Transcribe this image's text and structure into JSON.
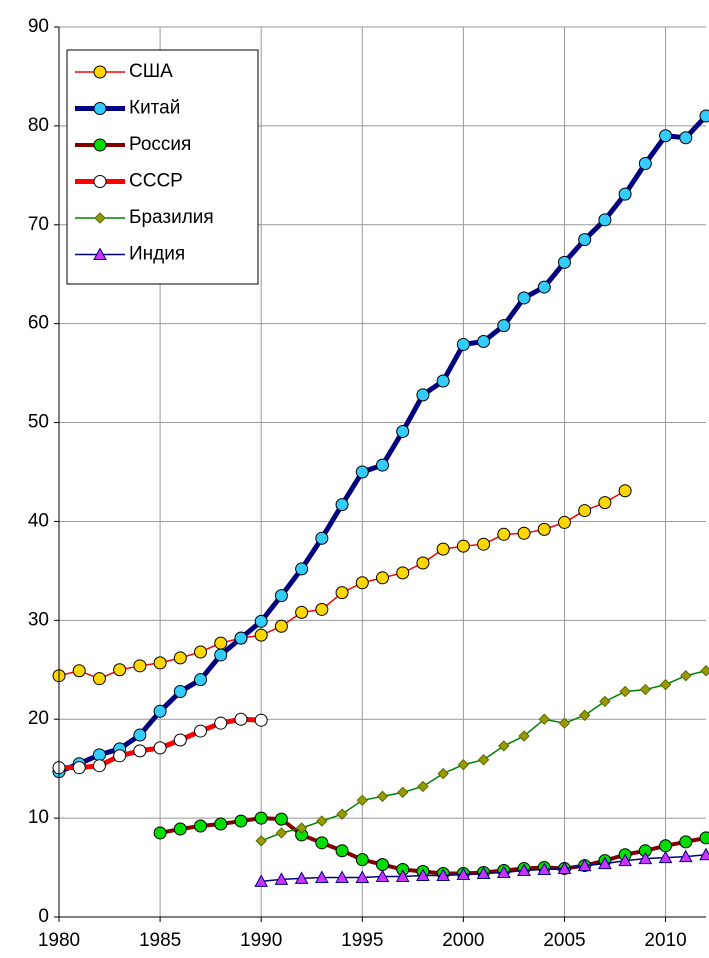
{
  "chart_data": {
    "type": "line",
    "x": [
      1980,
      1981,
      1982,
      1983,
      1984,
      1985,
      1986,
      1987,
      1988,
      1989,
      1990,
      1991,
      1992,
      1993,
      1994,
      1995,
      1996,
      1997,
      1998,
      1999,
      2000,
      2001,
      2002,
      2003,
      2004,
      2005,
      2006,
      2007,
      2008,
      2009,
      2010,
      2011,
      2012
    ],
    "series": [
      {
        "name": "США",
        "color": "#ff0000",
        "marker_color": "#ffd700",
        "marker": "circle",
        "width": 1.5,
        "values": [
          24.4,
          24.9,
          24.1,
          25.0,
          25.4,
          25.7,
          26.2,
          26.8,
          27.7,
          28.2,
          28.5,
          29.4,
          30.8,
          31.1,
          32.8,
          33.8,
          34.3,
          34.8,
          35.8,
          37.2,
          37.5,
          37.7,
          38.7,
          38.8,
          39.2,
          39.9,
          41.1,
          41.9,
          43.1,
          null,
          null,
          null,
          null
        ]
      },
      {
        "name": "Китай",
        "color": "#000080",
        "marker_color": "#33ccff",
        "marker": "circle",
        "width": 5,
        "values": [
          14.7,
          15.5,
          16.4,
          17.0,
          18.4,
          20.8,
          22.8,
          24.0,
          26.5,
          28.2,
          29.9,
          32.5,
          35.2,
          38.3,
          41.7,
          45.0,
          45.7,
          49.1,
          52.8,
          54.2,
          57.9,
          58.2,
          59.8,
          62.6,
          63.7,
          66.2,
          68.5,
          70.5,
          73.1,
          76.2,
          79.0,
          78.8,
          81.0
        ]
      },
      {
        "name": "Россия",
        "color": "#800000",
        "marker_color": "#00dd00",
        "marker": "circle",
        "width": 4,
        "values": [
          null,
          null,
          null,
          null,
          null,
          8.5,
          8.9,
          9.2,
          9.4,
          9.7,
          10.0,
          9.9,
          8.3,
          7.5,
          6.7,
          5.8,
          5.3,
          4.8,
          4.6,
          4.4,
          4.4,
          4.5,
          4.7,
          4.9,
          5.0,
          4.9,
          5.2,
          5.7,
          6.3,
          6.7,
          7.2,
          7.6,
          8.0
        ]
      },
      {
        "name": "СССР",
        "color": "#ff0000",
        "marker_color": "#ffffff",
        "marker": "circle",
        "width": 5,
        "values": [
          15.1,
          15.1,
          15.3,
          16.3,
          16.8,
          17.1,
          17.9,
          18.8,
          19.6,
          20.0,
          19.9,
          null,
          null,
          null,
          null,
          null,
          null,
          null,
          null,
          null,
          null,
          null,
          null,
          null,
          null,
          null,
          null,
          null,
          null,
          null,
          null,
          null,
          null
        ]
      },
      {
        "name": "Бразилия",
        "color": "#008000",
        "marker_color": "#999900",
        "marker": "diamond",
        "width": 1.5,
        "values": [
          null,
          null,
          null,
          null,
          null,
          null,
          null,
          null,
          null,
          null,
          7.7,
          8.5,
          9.0,
          9.7,
          10.4,
          11.8,
          12.2,
          12.6,
          13.2,
          14.5,
          15.4,
          15.9,
          17.3,
          18.3,
          20.0,
          19.6,
          20.4,
          21.8,
          22.8,
          23.0,
          23.5,
          24.4,
          24.9
        ]
      },
      {
        "name": "Индия",
        "color": "#000080",
        "marker_color": "#cc33ff",
        "marker": "triangle",
        "width": 1.5,
        "values": [
          null,
          null,
          null,
          null,
          null,
          null,
          null,
          null,
          null,
          null,
          3.6,
          3.8,
          3.9,
          4.0,
          4.0,
          4.0,
          4.1,
          4.1,
          4.2,
          4.2,
          4.3,
          4.4,
          4.5,
          4.7,
          4.8,
          4.9,
          5.2,
          5.4,
          5.7,
          5.9,
          6.0,
          6.1,
          6.3
        ]
      }
    ],
    "xlim": [
      1980,
      2012
    ],
    "xticks": [
      1980,
      1985,
      1990,
      1995,
      2000,
      2005,
      2010
    ],
    "ylim": [
      0,
      90
    ],
    "yticks": [
      0,
      10,
      20,
      30,
      40,
      50,
      60,
      70,
      80,
      90
    ],
    "grid": true,
    "legend": "upper left"
  }
}
